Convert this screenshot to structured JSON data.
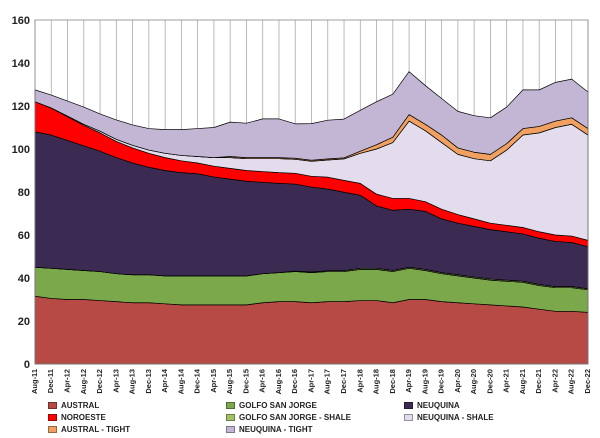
{
  "chart_data": {
    "type": "area",
    "stacked": true,
    "title": "",
    "xlabel": "",
    "ylabel": "",
    "ylim": [
      0,
      160
    ],
    "yticks": [
      0,
      20,
      40,
      60,
      80,
      100,
      120,
      140,
      160
    ],
    "grid": "vertical",
    "legend_position": "bottom",
    "x": [
      "Aug-11",
      "Dec-11",
      "Apr-12",
      "Aug-12",
      "Dec-12",
      "Apr-13",
      "Aug-13",
      "Dec-13",
      "Apr-14",
      "Aug-14",
      "Dec-14",
      "Apr-15",
      "Aug-15",
      "Dec-15",
      "Apr-16",
      "Aug-16",
      "Dec-16",
      "Apr-17",
      "Aug-17",
      "Dec-17",
      "Apr-18",
      "Aug-18",
      "Dec-18",
      "Apr-19",
      "Aug-19",
      "Dec-19",
      "Apr-20",
      "Aug-20",
      "Dec-20",
      "Apr-21",
      "Aug-21",
      "Dec-21",
      "Apr-22",
      "Aug-22",
      "Dec-22"
    ],
    "series": [
      {
        "name": "AUSTRAL",
        "color": "#b84a45",
        "values": [
          31.5,
          30.5,
          30,
          30,
          29.5,
          29,
          28.5,
          28.5,
          28,
          27.5,
          27.5,
          27.5,
          27.5,
          27.5,
          28.5,
          29,
          29,
          28.5,
          29,
          29,
          29.5,
          29.5,
          28.5,
          30,
          30,
          29,
          28.5,
          28,
          27.5,
          27,
          26.5,
          25.5,
          24.5,
          24.5,
          24
        ]
      },
      {
        "name": "GOLFO SAN JORGE",
        "color": "#7aa84a",
        "values": [
          13.5,
          14,
          14,
          13.5,
          13.5,
          13,
          13,
          13,
          13,
          13.5,
          13.5,
          13.5,
          13.5,
          13.5,
          13.5,
          13.5,
          14,
          14,
          14,
          14,
          14.5,
          14.5,
          14.5,
          14.5,
          13.5,
          13,
          12.5,
          12,
          11.5,
          11.5,
          11.5,
          11,
          11,
          11,
          10.5
        ]
      },
      {
        "name": "GOLFO SAN JORGE - SHALE",
        "color": "#a3c267",
        "values": [
          0,
          0,
          0,
          0,
          0,
          0,
          0,
          0,
          0,
          0,
          0,
          0,
          0,
          0,
          0,
          0,
          0.2,
          0.3,
          0.4,
          0.4,
          0.5,
          0.5,
          0.5,
          0.5,
          0.5,
          0.5,
          0.5,
          0.5,
          0.5,
          0.5,
          0.5,
          0.5,
          0.5,
          0.5,
          0.5
        ]
      },
      {
        "name": "NEUQUINA",
        "color": "#3b2a52",
        "values": [
          63,
          62,
          60,
          58,
          56,
          54,
          52,
          50,
          49,
          48,
          47.5,
          46,
          45,
          44,
          42.5,
          41.5,
          40.5,
          39.5,
          38,
          36.5,
          34,
          29,
          28,
          27,
          27,
          25,
          24,
          23.5,
          23,
          22.5,
          22,
          21.5,
          21,
          20.5,
          19.5
        ]
      },
      {
        "name": "NOROESTE",
        "color": "#ff0000",
        "values": [
          14,
          12.5,
          11,
          9.5,
          8.5,
          7.5,
          7,
          6.5,
          6,
          5.5,
          5,
          5,
          5,
          5,
          5,
          5,
          5,
          5,
          5.5,
          5.5,
          5.5,
          5.5,
          5.5,
          5,
          4.5,
          4.5,
          4,
          3.5,
          3,
          3,
          3,
          3,
          3,
          3,
          3
        ]
      },
      {
        "name": "NEUQUINA - SHALE",
        "color": "#e3dcec",
        "values": [
          0,
          0.1,
          0.3,
          0.5,
          0.8,
          1,
          1.2,
          1.5,
          2,
          2.5,
          3,
          4,
          5,
          5.5,
          6,
          6.5,
          6.5,
          7,
          8,
          10,
          14,
          21,
          26,
          36,
          33,
          31,
          28,
          28,
          29,
          35,
          43,
          46,
          50,
          52,
          49
        ]
      },
      {
        "name": "AUSTRAL - TIGHT",
        "color": "#f0a060",
        "values": [
          0,
          0,
          0,
          0,
          0,
          0,
          0,
          0,
          0,
          0,
          0,
          0,
          0.5,
          0.5,
          0.5,
          0.5,
          0.5,
          0.5,
          0.5,
          0.5,
          1,
          2,
          2.5,
          3,
          3,
          3.5,
          3,
          3,
          3,
          3,
          3,
          3,
          3,
          3,
          3
        ]
      },
      {
        "name": "NEUQUINA - TIGHT",
        "color": "#c2b6d4",
        "values": [
          5.5,
          6,
          7,
          8,
          8,
          9,
          9.5,
          10,
          11,
          12,
          13,
          14,
          16,
          16,
          18,
          18,
          16,
          17,
          18,
          18,
          19,
          20,
          20,
          20,
          18,
          17,
          17,
          17,
          17,
          17,
          18,
          17,
          18,
          18,
          17
        ]
      }
    ],
    "legend": {
      "rows": [
        [
          "AUSTRAL",
          "GOLFO SAN JORGE",
          "NEUQUINA"
        ],
        [
          "NOROESTE",
          "GOLFO SAN JORGE - SHALE",
          "NEUQUINA - SHALE"
        ],
        [
          "AUSTRAL - TIGHT",
          "NEUQUINA - TIGHT",
          ""
        ]
      ]
    }
  }
}
